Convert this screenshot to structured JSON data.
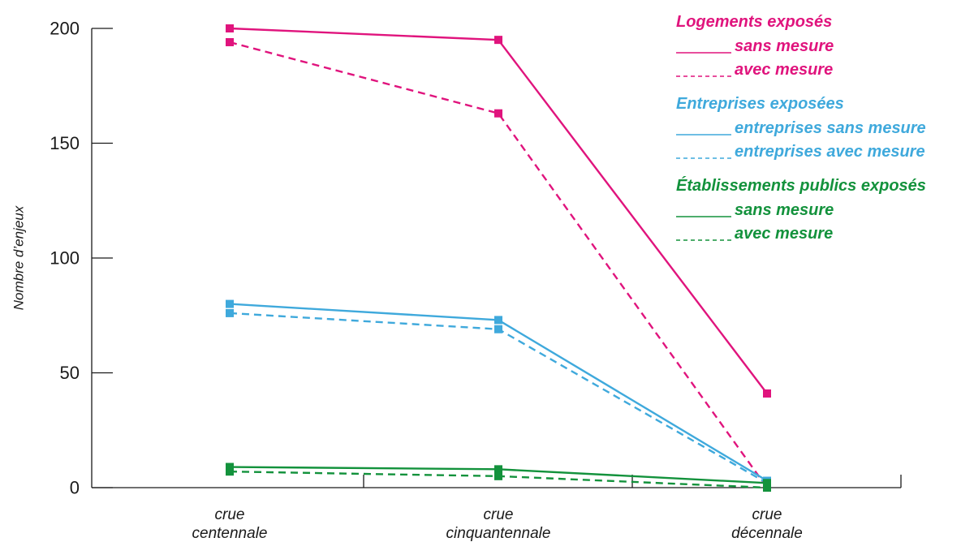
{
  "chart_data": {
    "type": "line",
    "title": "",
    "xlabel": "",
    "ylabel": "Nombre d’enjeux",
    "categories": [
      [
        "crue",
        "centennale"
      ],
      [
        "crue",
        "cinquantennale"
      ],
      [
        "crue",
        "décennale"
      ]
    ],
    "ylim": [
      0,
      200
    ],
    "yticks": [
      0,
      50,
      100,
      150,
      200
    ],
    "grid": false,
    "legend_position": "top-right",
    "groups": [
      {
        "heading": "Logements exposés",
        "color": "#e0147d",
        "series": [
          {
            "name": "sans mesure",
            "style": "solid",
            "values": [
              200,
              195,
              41
            ]
          },
          {
            "name": "avec mesure",
            "style": "dashed",
            "values": [
              194,
              163,
              0
            ]
          }
        ]
      },
      {
        "heading": "Entreprises exposées",
        "color": "#3fa9dc",
        "series": [
          {
            "name": "entreprises sans mesure",
            "style": "solid",
            "values": [
              80,
              73,
              3
            ]
          },
          {
            "name": "entreprises avec mesure",
            "style": "dashed",
            "values": [
              76,
              69,
              2
            ]
          }
        ]
      },
      {
        "heading": "Établissements publics exposés",
        "color": "#13923c",
        "series": [
          {
            "name": "sans mesure",
            "style": "solid",
            "values": [
              9,
              8,
              2
            ]
          },
          {
            "name": "avec mesure",
            "style": "dashed",
            "values": [
              7,
              5,
              0
            ]
          }
        ]
      }
    ]
  }
}
